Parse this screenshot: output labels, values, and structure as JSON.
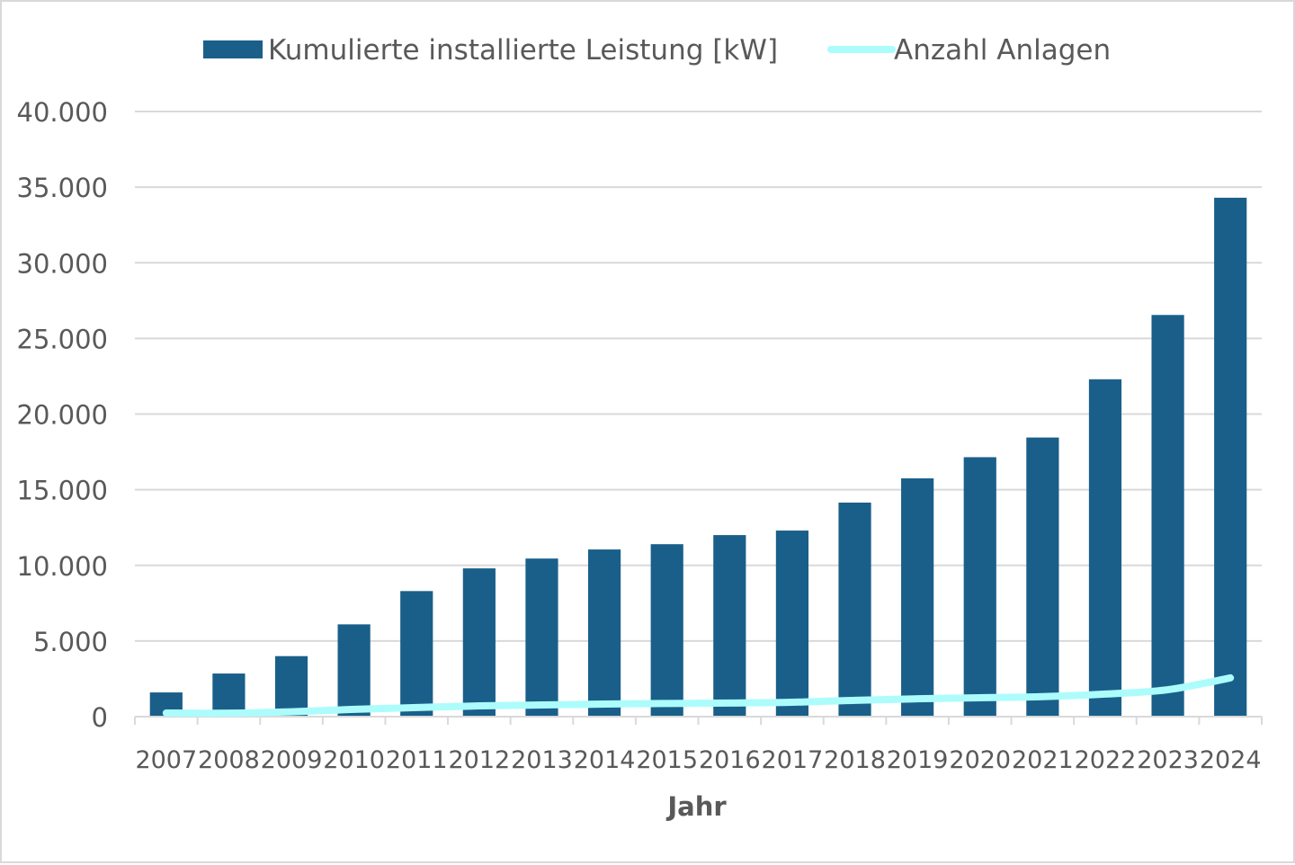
{
  "chart_data": {
    "type": "bar",
    "title": "",
    "xlabel": "Jahr",
    "ylabel": "",
    "ylim": [
      0,
      40000
    ],
    "yticks": [
      0,
      5000,
      10000,
      15000,
      20000,
      25000,
      30000,
      35000,
      40000
    ],
    "ytick_labels": [
      "0",
      "5.000",
      "10.000",
      "15.000",
      "20.000",
      "25.000",
      "30.000",
      "35.000",
      "40.000"
    ],
    "grid": true,
    "legend_position": "top",
    "categories": [
      "2007",
      "2008",
      "2009",
      "2010",
      "2011",
      "2012",
      "2013",
      "2014",
      "2015",
      "2016",
      "2017",
      "2018",
      "2019",
      "2020",
      "2021",
      "2022",
      "2023",
      "2024"
    ],
    "series": [
      {
        "name": "Kumulierte installierte Leistung [kW]",
        "type": "bar",
        "color": "#1a5f8a",
        "values": [
          1600,
          2850,
          4000,
          6100,
          8300,
          9800,
          10450,
          11050,
          11400,
          12000,
          12300,
          14150,
          15750,
          17150,
          18450,
          22300,
          26550,
          34300
        ]
      },
      {
        "name": "Anzahl Anlagen",
        "type": "line",
        "color": "#adfcfc",
        "values": [
          240,
          230,
          320,
          480,
          600,
          710,
          770,
          830,
          870,
          900,
          950,
          1080,
          1180,
          1250,
          1320,
          1490,
          1780,
          2560
        ]
      }
    ]
  }
}
